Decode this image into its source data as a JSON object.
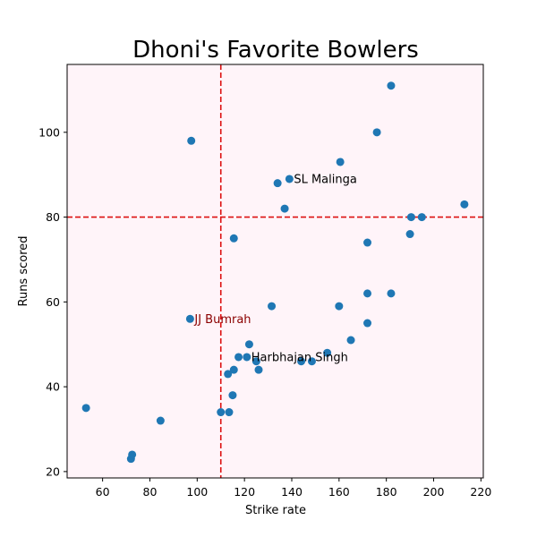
{
  "chart_data": {
    "type": "scatter",
    "title": "Dhoni's Favorite Bowlers",
    "xlabel": "Strike rate",
    "ylabel": "Runs scored",
    "xlim": [
      45,
      221
    ],
    "ylim": [
      18.5,
      116
    ],
    "xticks": [
      60,
      80,
      100,
      120,
      140,
      160,
      180,
      200,
      220
    ],
    "yticks": [
      20,
      40,
      60,
      80,
      100
    ],
    "background_color": "#fff4f9",
    "marker_color": "#1f77b4",
    "reference_lines": {
      "vertical_x": 110,
      "horizontal_y": 80,
      "color": "#dd1111",
      "style": "dashed"
    },
    "annotations": [
      {
        "text": "SL Malinga",
        "x": 139,
        "y": 89,
        "color": "#000000"
      },
      {
        "text": "JJ Bumrah",
        "x": 97,
        "y": 56,
        "color": "#8b0000"
      },
      {
        "text": "Harbhajan Singh",
        "x": 121,
        "y": 47,
        "color": "#000000"
      }
    ],
    "points": [
      {
        "x": 53,
        "y": 35
      },
      {
        "x": 72,
        "y": 23
      },
      {
        "x": 72.5,
        "y": 24
      },
      {
        "x": 84.5,
        "y": 32
      },
      {
        "x": 97.5,
        "y": 98
      },
      {
        "x": 97,
        "y": 56
      },
      {
        "x": 110,
        "y": 34
      },
      {
        "x": 113.5,
        "y": 34
      },
      {
        "x": 113,
        "y": 43
      },
      {
        "x": 115,
        "y": 38
      },
      {
        "x": 115.5,
        "y": 44
      },
      {
        "x": 115.5,
        "y": 75
      },
      {
        "x": 117.5,
        "y": 47
      },
      {
        "x": 121,
        "y": 47
      },
      {
        "x": 122,
        "y": 50
      },
      {
        "x": 125,
        "y": 46
      },
      {
        "x": 126,
        "y": 44
      },
      {
        "x": 131.5,
        "y": 59
      },
      {
        "x": 134,
        "y": 88
      },
      {
        "x": 137,
        "y": 82
      },
      {
        "x": 139,
        "y": 89
      },
      {
        "x": 144,
        "y": 46
      },
      {
        "x": 148.5,
        "y": 46
      },
      {
        "x": 155,
        "y": 48
      },
      {
        "x": 160,
        "y": 59
      },
      {
        "x": 160.5,
        "y": 93
      },
      {
        "x": 165,
        "y": 51
      },
      {
        "x": 172,
        "y": 55
      },
      {
        "x": 172,
        "y": 62
      },
      {
        "x": 172,
        "y": 74
      },
      {
        "x": 176,
        "y": 100
      },
      {
        "x": 182,
        "y": 62
      },
      {
        "x": 182,
        "y": 111
      },
      {
        "x": 190,
        "y": 76
      },
      {
        "x": 190.5,
        "y": 80
      },
      {
        "x": 195,
        "y": 80
      },
      {
        "x": 213,
        "y": 83
      }
    ]
  }
}
